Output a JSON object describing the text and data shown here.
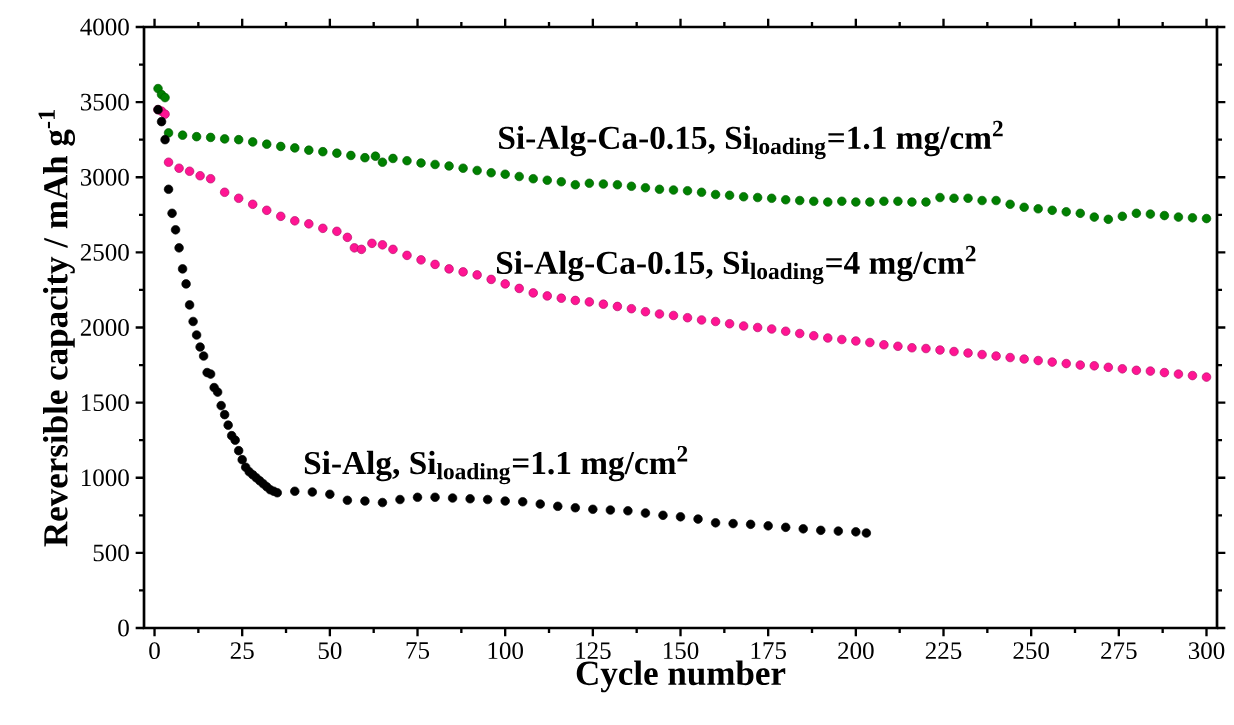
{
  "chart_data": {
    "type": "scatter",
    "xlabel": "Cycle number",
    "ylabel": "Reversible capacity / mAh g$^{-1}$",
    "marker": "circle",
    "xlim": [
      -3,
      303
    ],
    "ylim": [
      0,
      4000
    ],
    "xticks": [
      0,
      25,
      50,
      75,
      100,
      125,
      150,
      175,
      200,
      225,
      250,
      275,
      300
    ],
    "yticks": [
      0,
      500,
      1000,
      1500,
      2000,
      2500,
      3000,
      3500,
      4000
    ],
    "series": [
      {
        "name": "Si-Alg-Ca-0.15, Si$_{loading}$=1.1 mg/cm$^{2}$",
        "color": "#008000",
        "x": [
          1,
          2,
          3,
          4,
          8,
          12,
          16,
          20,
          24,
          28,
          32,
          36,
          40,
          44,
          48,
          52,
          56,
          60,
          63,
          65,
          68,
          72,
          76,
          80,
          84,
          88,
          92,
          96,
          100,
          104,
          108,
          112,
          116,
          120,
          124,
          128,
          132,
          136,
          140,
          144,
          148,
          152,
          156,
          160,
          164,
          168,
          172,
          176,
          180,
          184,
          188,
          192,
          196,
          200,
          204,
          208,
          212,
          216,
          220,
          224,
          228,
          232,
          236,
          240,
          244,
          248,
          252,
          256,
          260,
          264,
          268,
          272,
          276,
          280,
          284,
          288,
          292,
          296,
          300
        ],
        "values": [
          3590,
          3550,
          3530,
          3295,
          3280,
          3270,
          3265,
          3255,
          3250,
          3235,
          3220,
          3205,
          3195,
          3180,
          3170,
          3160,
          3145,
          3130,
          3140,
          3100,
          3125,
          3110,
          3095,
          3085,
          3075,
          3060,
          3045,
          3030,
          3020,
          3005,
          2990,
          2980,
          2970,
          2950,
          2960,
          2955,
          2950,
          2940,
          2930,
          2920,
          2915,
          2910,
          2900,
          2885,
          2880,
          2870,
          2865,
          2860,
          2850,
          2845,
          2840,
          2835,
          2840,
          2835,
          2835,
          2840,
          2840,
          2835,
          2835,
          2865,
          2860,
          2860,
          2845,
          2845,
          2820,
          2800,
          2790,
          2780,
          2770,
          2760,
          2735,
          2720,
          2740,
          2760,
          2755,
          2745,
          2735,
          2730,
          2725
        ]
      },
      {
        "name": "Si-Alg-Ca-0.15, Si$_{loading}$=4 mg/cm$^{2}$",
        "color": "#ff1493",
        "x": [
          1,
          2,
          3,
          4,
          7,
          10,
          13,
          16,
          20,
          24,
          28,
          32,
          36,
          40,
          44,
          48,
          52,
          55,
          57,
          59,
          62,
          65,
          68,
          72,
          76,
          80,
          84,
          88,
          92,
          96,
          100,
          104,
          108,
          112,
          116,
          120,
          124,
          128,
          132,
          136,
          140,
          144,
          148,
          152,
          156,
          160,
          164,
          168,
          172,
          176,
          180,
          184,
          188,
          192,
          196,
          200,
          204,
          208,
          212,
          216,
          220,
          224,
          228,
          232,
          236,
          240,
          244,
          248,
          252,
          256,
          260,
          264,
          268,
          272,
          276,
          280,
          284,
          288,
          292,
          296,
          300
        ],
        "values": [
          3450,
          3440,
          3420,
          3100,
          3060,
          3040,
          3010,
          2990,
          2900,
          2860,
          2820,
          2780,
          2740,
          2710,
          2690,
          2660,
          2640,
          2600,
          2530,
          2520,
          2560,
          2550,
          2520,
          2480,
          2450,
          2420,
          2390,
          2370,
          2350,
          2320,
          2290,
          2260,
          2230,
          2210,
          2195,
          2180,
          2170,
          2155,
          2140,
          2125,
          2105,
          2090,
          2080,
          2065,
          2050,
          2040,
          2025,
          2010,
          2000,
          1990,
          1975,
          1960,
          1945,
          1930,
          1920,
          1910,
          1900,
          1885,
          1875,
          1865,
          1860,
          1850,
          1840,
          1830,
          1820,
          1810,
          1800,
          1790,
          1780,
          1770,
          1760,
          1750,
          1745,
          1735,
          1725,
          1715,
          1710,
          1700,
          1690,
          1680,
          1670
        ]
      },
      {
        "name": "Si-Alg, Si$_{loading}$=1.1 mg/cm$^{2}$",
        "color": "#000000",
        "x": [
          1,
          2,
          3,
          4,
          5,
          6,
          7,
          8,
          9,
          10,
          11,
          12,
          13,
          14,
          15,
          16,
          17,
          18,
          19,
          20,
          21,
          22,
          23,
          24,
          25,
          26,
          27,
          28,
          29,
          30,
          31,
          32,
          33,
          34,
          35,
          40,
          45,
          50,
          55,
          60,
          65,
          70,
          75,
          80,
          85,
          90,
          95,
          100,
          105,
          110,
          115,
          120,
          125,
          130,
          135,
          140,
          145,
          150,
          155,
          160,
          165,
          170,
          175,
          180,
          185,
          190,
          195,
          200,
          203
        ],
        "values": [
          3450,
          3370,
          3250,
          2920,
          2760,
          2650,
          2530,
          2390,
          2290,
          2150,
          2040,
          1950,
          1870,
          1810,
          1700,
          1690,
          1600,
          1570,
          1480,
          1420,
          1350,
          1280,
          1250,
          1180,
          1120,
          1070,
          1040,
          1020,
          1000,
          980,
          960,
          940,
          920,
          910,
          900,
          910,
          905,
          890,
          850,
          845,
          835,
          855,
          870,
          870,
          865,
          860,
          855,
          845,
          840,
          825,
          810,
          800,
          790,
          785,
          780,
          765,
          750,
          740,
          725,
          700,
          695,
          690,
          680,
          670,
          660,
          650,
          645,
          640,
          632
        ]
      }
    ]
  }
}
